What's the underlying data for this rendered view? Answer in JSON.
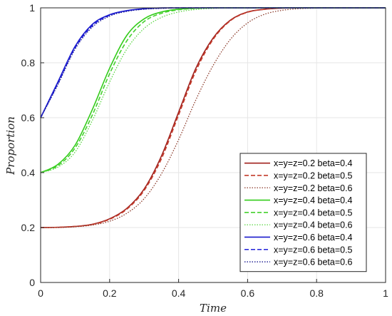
{
  "chart_data": {
    "type": "line",
    "title": "",
    "xlabel": "Time",
    "ylabel": "Proportion",
    "xlim": [
      0,
      1
    ],
    "ylim": [
      0,
      1
    ],
    "grid": true,
    "legend_position": "bottom-right",
    "x_ticks": [
      "0",
      "0.2",
      "0.4",
      "0.6",
      "0.8",
      "1"
    ],
    "y_ticks": [
      "0",
      "0.2",
      "0.4",
      "0.6",
      "0.8",
      "1"
    ],
    "x": [
      0,
      0.05,
      0.1,
      0.15,
      0.2,
      0.25,
      0.3,
      0.35,
      0.4,
      0.45,
      0.5,
      0.55,
      0.6,
      0.65,
      0.7,
      0.75,
      0.8,
      0.85,
      0.9,
      0.95,
      1.0
    ],
    "series": [
      {
        "name": "x=y=z=0.2 beta=0.4",
        "color": "#a0221e",
        "dash": "solid",
        "values": [
          0.2,
          0.201,
          0.204,
          0.212,
          0.232,
          0.27,
          0.34,
          0.46,
          0.62,
          0.78,
          0.89,
          0.955,
          0.985,
          0.995,
          0.999,
          1,
          1,
          1,
          1,
          1,
          1
        ]
      },
      {
        "name": "x=y=z=0.2 beta=0.5",
        "color": "#c43c2b",
        "dash": "dashed",
        "values": [
          0.2,
          0.201,
          0.204,
          0.211,
          0.23,
          0.267,
          0.335,
          0.45,
          0.61,
          0.77,
          0.885,
          0.953,
          0.984,
          0.995,
          0.999,
          1,
          1,
          1,
          1,
          1,
          1
        ]
      },
      {
        "name": "x=y=z=0.2 beta=0.6",
        "color": "#8b3a2a",
        "dash": "dotted",
        "values": [
          0.2,
          0.2,
          0.203,
          0.209,
          0.223,
          0.252,
          0.305,
          0.395,
          0.52,
          0.665,
          0.79,
          0.885,
          0.945,
          0.977,
          0.991,
          0.997,
          0.999,
          1,
          1,
          1,
          1
        ]
      },
      {
        "name": "x=y=z=0.4 beta=0.4",
        "color": "#33cc1a",
        "dash": "solid",
        "values": [
          0.4,
          0.43,
          0.5,
          0.63,
          0.78,
          0.9,
          0.96,
          0.985,
          0.995,
          0.999,
          1,
          1,
          1,
          1,
          1,
          1,
          1,
          1,
          1,
          1,
          1
        ]
      },
      {
        "name": "x=y=z=0.4 beta=0.5",
        "color": "#45d12e",
        "dash": "dashed",
        "values": [
          0.4,
          0.425,
          0.49,
          0.61,
          0.76,
          0.88,
          0.95,
          0.98,
          0.993,
          0.998,
          1,
          1,
          1,
          1,
          1,
          1,
          1,
          1,
          1,
          1,
          1
        ]
      },
      {
        "name": "x=y=z=0.4 beta=0.6",
        "color": "#58d640",
        "dash": "dotted",
        "values": [
          0.4,
          0.42,
          0.475,
          0.59,
          0.73,
          0.85,
          0.925,
          0.965,
          0.985,
          0.994,
          0.998,
          1,
          1,
          1,
          1,
          1,
          1,
          1,
          1,
          1,
          1
        ]
      },
      {
        "name": "x=y=z=0.6 beta=0.4",
        "color": "#1a1acc",
        "dash": "solid",
        "values": [
          0.6,
          0.73,
          0.86,
          0.94,
          0.975,
          0.99,
          0.997,
          1,
          1,
          1,
          1,
          1,
          1,
          1,
          1,
          1,
          1,
          1,
          1,
          1,
          1
        ]
      },
      {
        "name": "x=y=z=0.6 beta=0.5",
        "color": "#2222d9",
        "dash": "dashed",
        "values": [
          0.6,
          0.725,
          0.855,
          0.935,
          0.973,
          0.989,
          0.996,
          0.999,
          1,
          1,
          1,
          1,
          1,
          1,
          1,
          1,
          1,
          1,
          1,
          1,
          1
        ]
      },
      {
        "name": "x=y=z=0.6 beta=0.6",
        "color": "#14148c",
        "dash": "dotted",
        "values": [
          0.6,
          0.72,
          0.85,
          0.93,
          0.97,
          0.987,
          0.995,
          0.998,
          1,
          1,
          1,
          1,
          1,
          1,
          1,
          1,
          1,
          1,
          1,
          1,
          1
        ]
      }
    ]
  }
}
